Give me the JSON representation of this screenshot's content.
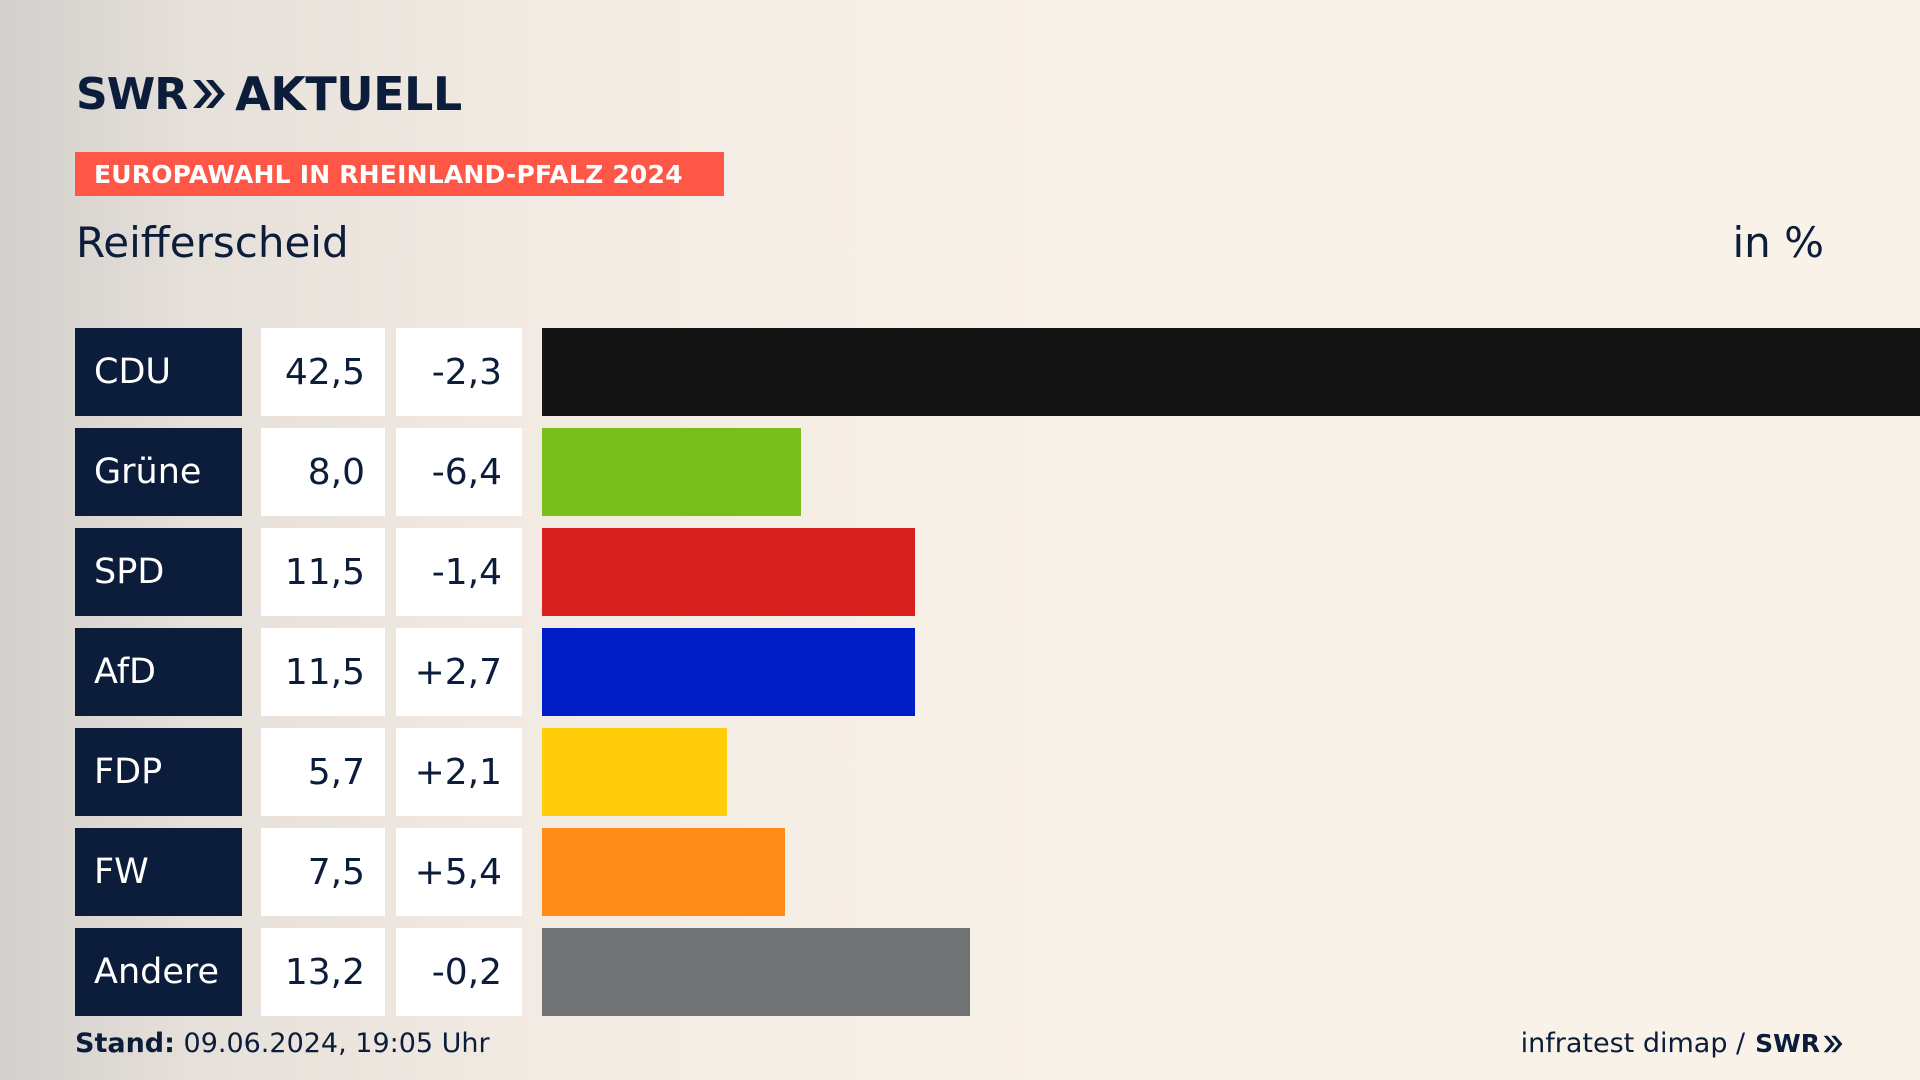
{
  "brand": {
    "swr": "SWR",
    "aktuell": "AKTUELL"
  },
  "banner": "EUROPAWAHL IN RHEINLAND-PFALZ 2024",
  "title": "Reifferscheid",
  "unit_label": "in %",
  "footer": {
    "stand_label": "Stand:",
    "stand_value": "09.06.2024, 19:05 Uhr",
    "source": "infratest dimap /",
    "source_logo": "SWR"
  },
  "colors": {
    "navy": "#0b1d3a",
    "banner": "#fe5747",
    "CDU": "#141414",
    "Grüne": "#7abe1e",
    "SPD": "#d71f1d",
    "AfD": "#001ec8",
    "FDP": "#ffcd0a",
    "FW": "#ff8c17",
    "Andere": "#717273"
  },
  "chart_data": {
    "type": "bar",
    "orientation": "horizontal",
    "categories": [
      "CDU",
      "Grüne",
      "SPD",
      "AfD",
      "FDP",
      "FW",
      "Andere"
    ],
    "values": [
      42.5,
      8.0,
      11.5,
      11.5,
      5.7,
      7.5,
      13.2
    ],
    "value_labels": [
      "42,5",
      "8,0",
      "11,5",
      "11,5",
      "5,7",
      "7,5",
      "13,2"
    ],
    "diff_labels": [
      "-2,3",
      "-6,4",
      "-1,4",
      "+2,7",
      "+2,1",
      "+5,4",
      "-0,2"
    ],
    "diffs": [
      -2.3,
      -6.4,
      -1.4,
      2.7,
      2.1,
      5.4,
      -0.2
    ],
    "xlim": [
      0,
      42.5
    ],
    "grid": false,
    "legend": "none"
  }
}
